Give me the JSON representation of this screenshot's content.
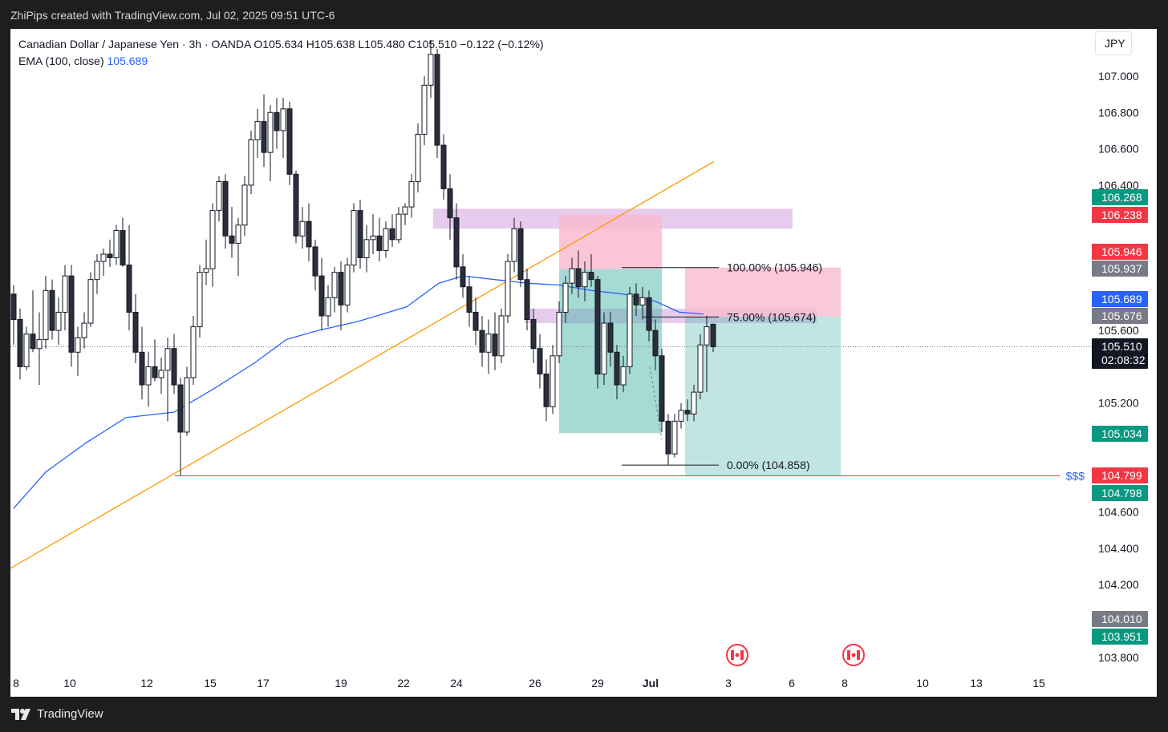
{
  "header": {
    "caption": "ZhiPips created with TradingView.com, Jul 02, 2025 09:51 UTC-6"
  },
  "legend": {
    "symbol_line": "Canadian Dollar / Japanese Yen · 3h · OANDA  O105.634  H105.638  L105.480  C105.510  −0.122 (−0.12%)",
    "ema_label": "EMA (100, close)",
    "ema_value": "105.689"
  },
  "currency_button": "JPY",
  "footer": {
    "brand": "TradingView"
  },
  "colors": {
    "up_candle": "#ffffff",
    "down_candle": "#2a2e39",
    "ema": "#2962ff",
    "trendline": "#ff9800",
    "support_line": "#f23645",
    "supply_zone": "#e1bee7",
    "target_zone": "#4db6ac",
    "stop_zone": "#f8bbd0"
  },
  "chart_data": {
    "type": "candlestick",
    "symbol": "CADJPY",
    "timeframe": "3h",
    "y_axis": {
      "ticks": [
        "107.000",
        "106.800",
        "106.600",
        "106.400",
        "105.600",
        "105.200",
        "104.600",
        "104.400",
        "104.200",
        "103.800"
      ],
      "range": [
        103.75,
        107.2
      ]
    },
    "x_axis": {
      "ticks": [
        "8",
        "10",
        "12",
        "15",
        "17",
        "19",
        "22",
        "24",
        "26",
        "29",
        "Jul",
        "3",
        "6",
        "8",
        "10",
        "13",
        "15"
      ]
    },
    "price_tags": [
      {
        "label": "106.268",
        "color": "#089981"
      },
      {
        "label": "106.238",
        "color": "#f23645"
      },
      {
        "label": "105.946",
        "color": "#f23645"
      },
      {
        "label": "105.937",
        "color": "#787b86"
      },
      {
        "label": "105.689",
        "color": "#2962ff"
      },
      {
        "label": "105.676",
        "color": "#787b86"
      },
      {
        "label": "105.510",
        "color": "#131722"
      },
      {
        "label": "105.034",
        "color": "#089981"
      },
      {
        "label": "104.799",
        "color": "#f23645"
      },
      {
        "label": "104.798",
        "color": "#089981"
      },
      {
        "label": "104.010",
        "color": "#787b86"
      },
      {
        "label": "103.951",
        "color": "#089981"
      }
    ],
    "countdown": "02:08:32",
    "fibonacci": [
      {
        "label": "100.00% (105.946)",
        "price": 105.946
      },
      {
        "label": "75.00% (105.674)",
        "price": 105.674
      },
      {
        "label": "0.00% (104.858)",
        "price": 104.858
      }
    ],
    "support_label": "$$$",
    "support_price": 104.799,
    "ema_series": [
      [
        0,
        104.62
      ],
      [
        40,
        104.82
      ],
      [
        90,
        104.98
      ],
      [
        140,
        105.12
      ],
      [
        200,
        105.15
      ],
      [
        250,
        105.28
      ],
      [
        300,
        105.42
      ],
      [
        340,
        105.55
      ],
      [
        380,
        105.6
      ],
      [
        430,
        105.65
      ],
      [
        490,
        105.73
      ],
      [
        530,
        105.86
      ],
      [
        560,
        105.9
      ],
      [
        600,
        105.88
      ],
      [
        640,
        105.86
      ],
      [
        680,
        105.85
      ],
      [
        720,
        105.82
      ],
      [
        760,
        105.8
      ],
      [
        800,
        105.76
      ],
      [
        830,
        105.7
      ],
      [
        860,
        105.69
      ]
    ],
    "candles": [
      [
        0,
        105.8,
        105.85,
        105.52,
        105.66
      ],
      [
        8,
        105.66,
        105.72,
        105.33,
        105.4
      ],
      [
        16,
        105.4,
        105.62,
        105.38,
        105.58
      ],
      [
        24,
        105.58,
        105.82,
        105.48,
        105.5
      ],
      [
        32,
        105.5,
        105.7,
        105.3,
        105.55
      ],
      [
        40,
        105.55,
        105.9,
        105.5,
        105.82
      ],
      [
        48,
        105.82,
        105.88,
        105.55,
        105.6
      ],
      [
        56,
        105.6,
        105.78,
        105.52,
        105.7
      ],
      [
        64,
        105.7,
        105.96,
        105.6,
        105.9
      ],
      [
        72,
        105.9,
        105.96,
        105.4,
        105.48
      ],
      [
        80,
        105.48,
        105.62,
        105.35,
        105.56
      ],
      [
        88,
        105.56,
        105.7,
        105.5,
        105.64
      ],
      [
        96,
        105.64,
        105.92,
        105.62,
        105.88
      ],
      [
        104,
        105.88,
        106.02,
        105.8,
        105.98
      ],
      [
        112,
        105.98,
        106.05,
        105.9,
        106.02
      ],
      [
        120,
        106.02,
        106.1,
        105.95,
        106.0
      ],
      [
        128,
        106.0,
        106.18,
        105.96,
        106.15
      ],
      [
        136,
        106.15,
        106.22,
        105.95,
        105.96
      ],
      [
        144,
        105.96,
        106.18,
        105.6,
        105.7
      ],
      [
        152,
        105.7,
        105.8,
        105.42,
        105.48
      ],
      [
        160,
        105.48,
        105.62,
        105.22,
        105.3
      ],
      [
        168,
        105.3,
        105.48,
        105.18,
        105.4
      ],
      [
        176,
        105.4,
        105.55,
        105.32,
        105.34
      ],
      [
        184,
        105.34,
        105.45,
        105.25,
        105.38
      ],
      [
        192,
        105.38,
        105.56,
        105.1,
        105.5
      ],
      [
        200,
        105.5,
        105.58,
        105.25,
        105.3
      ],
      [
        208,
        105.3,
        105.34,
        104.8,
        105.04
      ],
      [
        216,
        105.04,
        105.4,
        105.02,
        105.34
      ],
      [
        224,
        105.34,
        105.68,
        105.3,
        105.62
      ],
      [
        232,
        105.62,
        105.96,
        105.56,
        105.92
      ],
      [
        240,
        105.92,
        106.1,
        105.85,
        105.94
      ],
      [
        248,
        105.94,
        106.3,
        105.84,
        106.26
      ],
      [
        256,
        106.26,
        106.45,
        106.2,
        106.42
      ],
      [
        264,
        106.42,
        106.46,
        106.05,
        106.12
      ],
      [
        272,
        106.12,
        106.28,
        106.0,
        106.08
      ],
      [
        280,
        106.08,
        106.22,
        105.9,
        106.18
      ],
      [
        288,
        106.18,
        106.45,
        106.12,
        106.4
      ],
      [
        296,
        106.4,
        106.7,
        106.35,
        106.65
      ],
      [
        304,
        106.65,
        106.82,
        106.55,
        106.75
      ],
      [
        312,
        106.75,
        106.9,
        106.5,
        106.58
      ],
      [
        320,
        106.58,
        106.84,
        106.42,
        106.8
      ],
      [
        328,
        106.8,
        106.88,
        106.6,
        106.7
      ],
      [
        336,
        106.7,
        106.88,
        106.55,
        106.82
      ],
      [
        344,
        106.82,
        106.86,
        106.4,
        106.46
      ],
      [
        352,
        106.46,
        106.48,
        106.08,
        106.12
      ],
      [
        360,
        106.12,
        106.28,
        106.05,
        106.2
      ],
      [
        368,
        106.2,
        106.3,
        105.98,
        106.06
      ],
      [
        376,
        106.06,
        106.1,
        105.82,
        105.9
      ],
      [
        384,
        105.9,
        106.0,
        105.6,
        105.68
      ],
      [
        392,
        105.68,
        105.85,
        105.62,
        105.78
      ],
      [
        400,
        105.78,
        105.95,
        105.7,
        105.92
      ],
      [
        408,
        105.92,
        105.98,
        105.6,
        105.74
      ],
      [
        416,
        105.74,
        106.0,
        105.7,
        105.96
      ],
      [
        424,
        105.96,
        106.3,
        105.92,
        106.26
      ],
      [
        432,
        106.26,
        106.32,
        105.94,
        106.0
      ],
      [
        440,
        106.0,
        106.18,
        105.92,
        106.1
      ],
      [
        448,
        106.1,
        106.24,
        106.02,
        106.12
      ],
      [
        456,
        106.12,
        106.22,
        105.98,
        106.04
      ],
      [
        464,
        106.04,
        106.2,
        106.0,
        106.16
      ],
      [
        472,
        106.16,
        106.24,
        106.06,
        106.1
      ],
      [
        480,
        106.1,
        106.28,
        106.08,
        106.24
      ],
      [
        488,
        106.24,
        106.3,
        106.18,
        106.28
      ],
      [
        496,
        106.28,
        106.46,
        106.22,
        106.42
      ],
      [
        504,
        106.42,
        106.74,
        106.36,
        106.68
      ],
      [
        512,
        106.68,
        107.0,
        106.62,
        106.95
      ],
      [
        520,
        106.95,
        107.2,
        106.88,
        107.12
      ],
      [
        528,
        107.12,
        107.15,
        106.55,
        106.62
      ],
      [
        536,
        106.62,
        106.68,
        106.32,
        106.38
      ],
      [
        544,
        106.38,
        106.46,
        106.1,
        106.22
      ],
      [
        552,
        106.22,
        106.3,
        105.88,
        105.95
      ],
      [
        560,
        105.95,
        106.02,
        105.78,
        105.84
      ],
      [
        568,
        105.84,
        105.9,
        105.62,
        105.7
      ],
      [
        576,
        105.7,
        105.78,
        105.52,
        105.6
      ],
      [
        584,
        105.6,
        105.68,
        105.4,
        105.48
      ],
      [
        592,
        105.48,
        105.66,
        105.36,
        105.58
      ],
      [
        600,
        105.58,
        105.7,
        105.38,
        105.46
      ],
      [
        608,
        105.46,
        105.72,
        105.42,
        105.68
      ],
      [
        616,
        105.68,
        106.02,
        105.64,
        105.98
      ],
      [
        624,
        105.98,
        106.22,
        105.92,
        106.16
      ],
      [
        632,
        106.16,
        106.2,
        105.84,
        105.88
      ],
      [
        640,
        105.88,
        105.94,
        105.6,
        105.66
      ],
      [
        648,
        105.66,
        105.72,
        105.42,
        105.5
      ],
      [
        656,
        105.5,
        105.58,
        105.28,
        105.36
      ],
      [
        664,
        105.36,
        105.44,
        105.1,
        105.18
      ],
      [
        672,
        105.18,
        105.52,
        105.14,
        105.46
      ],
      [
        680,
        105.46,
        105.76,
        105.42,
        105.7
      ],
      [
        688,
        105.7,
        105.9,
        105.64,
        105.86
      ],
      [
        696,
        105.86,
        106.0,
        105.8,
        105.94
      ],
      [
        704,
        105.94,
        106.04,
        105.78,
        105.84
      ],
      [
        712,
        105.84,
        105.98,
        105.76,
        105.92
      ],
      [
        720,
        105.92,
        106.02,
        105.84,
        105.88
      ],
      [
        728,
        105.88,
        105.9,
        105.28,
        105.36
      ],
      [
        736,
        105.36,
        105.7,
        105.3,
        105.64
      ],
      [
        744,
        105.64,
        105.7,
        105.4,
        105.48
      ],
      [
        752,
        105.48,
        105.52,
        105.22,
        105.3
      ],
      [
        760,
        105.3,
        105.46,
        105.26,
        105.4
      ],
      [
        768,
        105.4,
        105.84,
        105.36,
        105.8
      ],
      [
        776,
        105.8,
        105.86,
        105.68,
        105.74
      ],
      [
        784,
        105.74,
        105.84,
        105.66,
        105.78
      ],
      [
        792,
        105.78,
        105.82,
        105.54,
        105.6
      ],
      [
        800,
        105.6,
        105.66,
        105.38,
        105.46
      ],
      [
        808,
        105.46,
        105.5,
        105.04,
        105.1
      ],
      [
        816,
        105.1,
        105.14,
        104.86,
        104.92
      ],
      [
        824,
        104.92,
        105.14,
        104.9,
        105.1
      ],
      [
        832,
        105.1,
        105.2,
        105.06,
        105.16
      ],
      [
        840,
        105.16,
        105.22,
        105.1,
        105.14
      ],
      [
        848,
        105.14,
        105.3,
        105.1,
        105.26
      ],
      [
        856,
        105.26,
        105.58,
        105.22,
        105.52
      ],
      [
        864,
        105.52,
        105.68,
        105.26,
        105.62
      ],
      [
        872,
        105.634,
        105.638,
        105.48,
        105.51
      ]
    ]
  }
}
